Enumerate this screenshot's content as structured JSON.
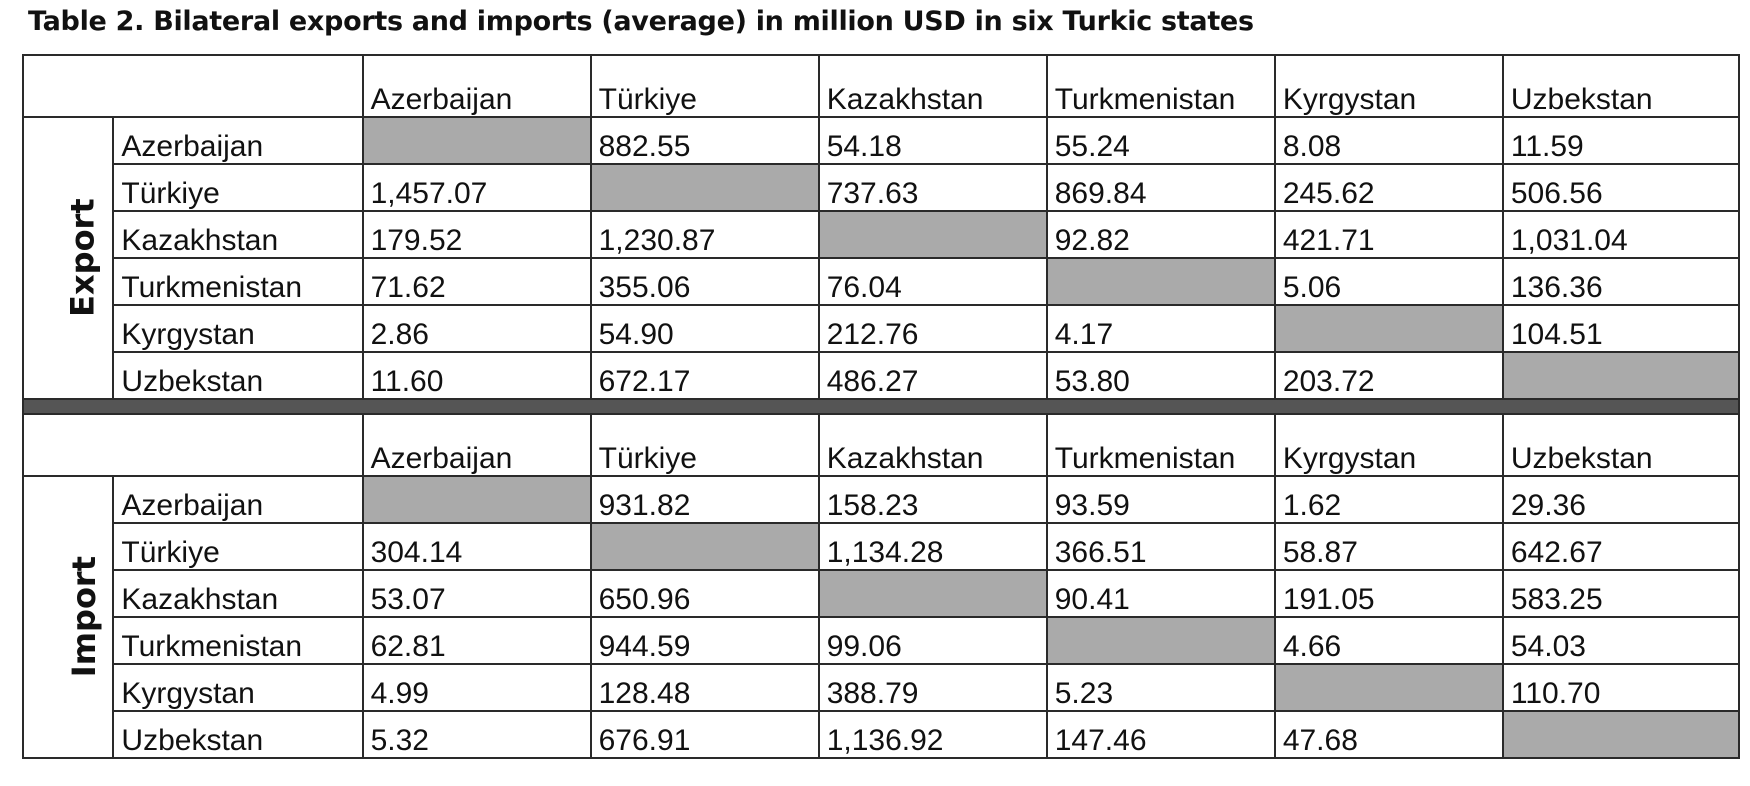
{
  "title": "Table 2. Bilateral exports and imports (average) in million USD in six Turkic states",
  "export": {
    "label": "Export",
    "columns": [
      "Azerbaijan",
      "Türkiye",
      "Kazakhstan",
      "Turkmenistan",
      "Kyrgystan",
      "Uzbekstan"
    ],
    "rows": [
      {
        "country": "Azerbaijan",
        "values": [
          "",
          "882.55",
          "54.18",
          "55.24",
          "8.08",
          "11.59"
        ]
      },
      {
        "country": "Türkiye",
        "values": [
          "1,457.07",
          "",
          "737.63",
          "869.84",
          "245.62",
          "506.56"
        ]
      },
      {
        "country": "Kazakhstan",
        "values": [
          "179.52",
          "1,230.87",
          "",
          "92.82",
          "421.71",
          "1,031.04"
        ]
      },
      {
        "country": "Turkmenistan",
        "values": [
          "71.62",
          "355.06",
          "76.04",
          "",
          "5.06",
          "136.36"
        ]
      },
      {
        "country": "Kyrgystan",
        "values": [
          "2.86",
          "54.90",
          "212.76",
          "4.17",
          "",
          "104.51"
        ]
      },
      {
        "country": "Uzbekstan",
        "values": [
          "11.60",
          "672.17",
          "486.27",
          "53.80",
          "203.72",
          ""
        ]
      }
    ]
  },
  "import": {
    "label": "Import",
    "columns": [
      "Azerbaijan",
      "Türkiye",
      "Kazakhstan",
      "Turkmenistan",
      "Kyrgystan",
      "Uzbekstan"
    ],
    "rows": [
      {
        "country": "Azerbaijan",
        "values": [
          "",
          "931.82",
          "158.23",
          "93.59",
          "1.62",
          "29.36"
        ]
      },
      {
        "country": "Türkiye",
        "values": [
          "304.14",
          "",
          "1,134.28",
          "366.51",
          "58.87",
          "642.67"
        ]
      },
      {
        "country": "Kazakhstan",
        "values": [
          "53.07",
          "650.96",
          "",
          "90.41",
          "191.05",
          "583.25"
        ]
      },
      {
        "country": "Turkmenistan",
        "values": [
          "62.81",
          "944.59",
          "99.06",
          "",
          "4.66",
          "54.03"
        ]
      },
      {
        "country": "Kyrgystan",
        "values": [
          "4.99",
          "128.48",
          "388.79",
          "5.23",
          "",
          "110.70"
        ]
      },
      {
        "country": "Uzbekstan",
        "values": [
          "5.32",
          "676.91",
          "1,136.92",
          "147.46",
          "47.68",
          ""
        ]
      }
    ]
  },
  "colors": {
    "diagonal_shade": "#aaaaaa",
    "separator": "#555555",
    "border": "#2a2a2a"
  }
}
